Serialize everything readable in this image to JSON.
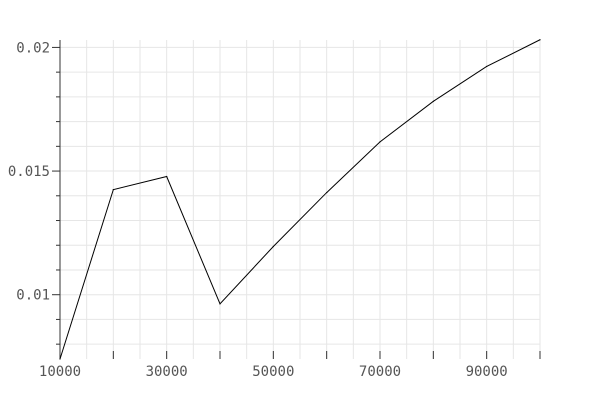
{
  "chart_data": {
    "type": "line",
    "title": "",
    "xlabel": "",
    "ylabel": "",
    "x": [
      10000,
      20000,
      30000,
      40000,
      50000,
      60000,
      70000,
      80000,
      90000,
      100000
    ],
    "series": [
      {
        "values": [
          0.0074,
          0.01425,
          0.01478,
          0.00963,
          0.01195,
          0.01413,
          0.01618,
          0.01782,
          0.01923,
          0.02031
        ]
      }
    ],
    "xlim": [
      10000,
      100000
    ],
    "ylim": [
      0.0074,
      0.0203
    ],
    "xticks": [
      10000,
      30000,
      50000,
      70000,
      90000
    ],
    "xtick_labels": [
      "10000",
      "30000",
      "50000",
      "70000",
      "90000"
    ],
    "x_minor_ticks": [
      20000,
      40000,
      60000,
      80000,
      100000
    ],
    "yticks": [
      0.01,
      0.015,
      0.02
    ],
    "ytick_labels": [
      "0.01",
      "0.015",
      "0.02"
    ],
    "y_minor_step": 0.001,
    "x_grid_step": 5000,
    "grid": true,
    "legend": "none",
    "colors": {
      "line": "#000000",
      "grid": "#e6e6e6",
      "axis": "#333333",
      "text": "#555555"
    }
  }
}
